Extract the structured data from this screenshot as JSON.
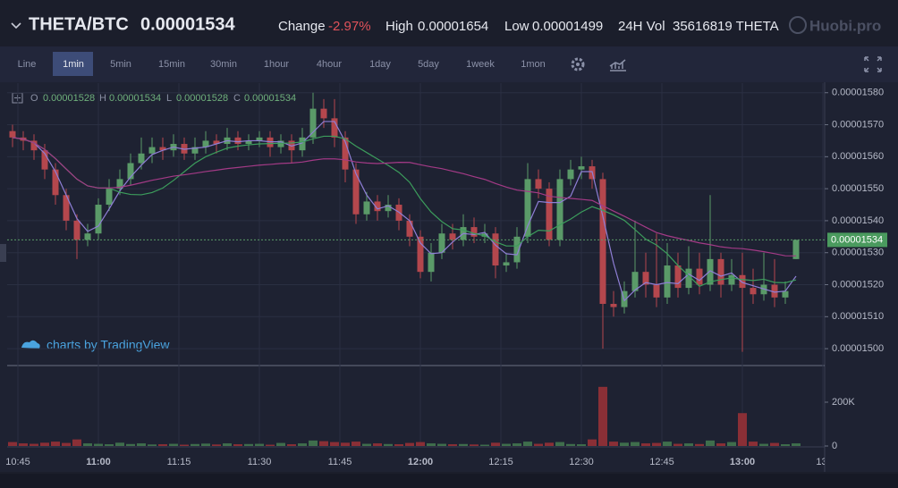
{
  "header": {
    "pair": "THETA/BTC",
    "change_label": "Change",
    "change": "-2.97%",
    "high_label": "High",
    "high": "0.00001654",
    "low_label": "Low",
    "low": "0.00001499",
    "vol_label": "24H Vol",
    "vol": "35616819 THETA",
    "logo": "Huobi.pro"
  },
  "toolbar": {
    "intervals": [
      "Line",
      "1min",
      "5min",
      "15min",
      "30min",
      "1hour",
      "4hour",
      "1day",
      "5day",
      "1week",
      "1mon"
    ],
    "active": "1min"
  },
  "chart_data": {
    "type": "candlestick",
    "legend": [
      {
        "label": "O",
        "value": "0.00001528"
      },
      {
        "label": "H",
        "value": "0.00001534"
      },
      {
        "label": "L",
        "value": "0.00001528"
      },
      {
        "label": "C",
        "value": "0.00001534"
      }
    ],
    "watermark": "charts by TradingView",
    "up_color": "#5a9a68",
    "down_color": "#b4474d",
    "ylim": [
      1.495e-05,
      1.583e-05
    ],
    "yticks": [
      {
        "value": 1.5e-05,
        "label": "0.00001500"
      },
      {
        "value": 1.51e-05,
        "label": "0.00001510"
      },
      {
        "value": 1.52e-05,
        "label": "0.00001520"
      },
      {
        "value": 1.53e-05,
        "label": "0.00001530"
      },
      {
        "value": 1.54e-05,
        "label": "0.00001540"
      },
      {
        "value": 1.55e-05,
        "label": "0.00001550"
      },
      {
        "value": 1.56e-05,
        "label": "0.00001560"
      },
      {
        "value": 1.57e-05,
        "label": "0.00001570"
      },
      {
        "value": 1.58e-05,
        "label": "0.00001580"
      }
    ],
    "last_price": {
      "value": 1.534e-05,
      "label": "0.00001534"
    },
    "xticks": [
      "10:45",
      "11:00",
      "11:15",
      "11:30",
      "11:45",
      "12:00",
      "12:15",
      "12:30",
      "12:45",
      "13:00",
      "13:"
    ],
    "bold_xticks": [
      "11:00",
      "12:00",
      "13:00"
    ],
    "grid": true,
    "candles": [
      [
        1.568e-05,
        1.57e-05,
        1.563e-05,
        1.566e-05
      ],
      [
        1.566e-05,
        1.568e-05,
        1.562e-05,
        1.565e-05
      ],
      [
        1.565e-05,
        1.567e-05,
        1.559e-05,
        1.562e-05
      ],
      [
        1.562e-05,
        1.564e-05,
        1.553e-05,
        1.556e-05
      ],
      [
        1.556e-05,
        1.558e-05,
        1.545e-05,
        1.548e-05
      ],
      [
        1.548e-05,
        1.55e-05,
        1.537e-05,
        1.54e-05
      ],
      [
        1.54e-05,
        1.542e-05,
        1.528e-05,
        1.534e-05
      ],
      [
        1.534e-05,
        1.539e-05,
        1.532e-05,
        1.536e-05
      ],
      [
        1.536e-05,
        1.547e-05,
        1.534e-05,
        1.545e-05
      ],
      [
        1.545e-05,
        1.553e-05,
        1.543e-05,
        1.55e-05
      ],
      [
        1.55e-05,
        1.556e-05,
        1.548e-05,
        1.553e-05
      ],
      [
        1.553e-05,
        1.561e-05,
        1.551e-05,
        1.558e-05
      ],
      [
        1.558e-05,
        1.566e-05,
        1.556e-05,
        1.561e-05
      ],
      [
        1.561e-05,
        1.566e-05,
        1.558e-05,
        1.563e-05
      ],
      [
        1.563e-05,
        1.566e-05,
        1.559e-05,
        1.562e-05
      ],
      [
        1.562e-05,
        1.567e-05,
        1.56e-05,
        1.564e-05
      ],
      [
        1.564e-05,
        1.566e-05,
        1.559e-05,
        1.561e-05
      ],
      [
        1.561e-05,
        1.566e-05,
        1.559e-05,
        1.563e-05
      ],
      [
        1.563e-05,
        1.568e-05,
        1.561e-05,
        1.565e-05
      ],
      [
        1.565e-05,
        1.567e-05,
        1.561e-05,
        1.564e-05
      ],
      [
        1.564e-05,
        1.569e-05,
        1.562e-05,
        1.566e-05
      ],
      [
        1.566e-05,
        1.568e-05,
        1.562e-05,
        1.564e-05
      ],
      [
        1.564e-05,
        1.567e-05,
        1.562e-05,
        1.565e-05
      ],
      [
        1.565e-05,
        1.568e-05,
        1.563e-05,
        1.566e-05
      ],
      [
        1.566e-05,
        1.568e-05,
        1.56e-05,
        1.563e-05
      ],
      [
        1.563e-05,
        1.567e-05,
        1.561e-05,
        1.565e-05
      ],
      [
        1.565e-05,
        1.567e-05,
        1.558e-05,
        1.562e-05
      ],
      [
        1.562e-05,
        1.569e-05,
        1.56e-05,
        1.566e-05
      ],
      [
        1.566e-05,
        1.58e-05,
        1.564e-05,
        1.575e-05
      ],
      [
        1.575e-05,
        1.578e-05,
        1.569e-05,
        1.572e-05
      ],
      [
        1.572e-05,
        1.578e-05,
        1.563e-05,
        1.566e-05
      ],
      [
        1.566e-05,
        1.568e-05,
        1.552e-05,
        1.556e-05
      ],
      [
        1.556e-05,
        1.558e-05,
        1.539e-05,
        1.542e-05
      ],
      [
        1.542e-05,
        1.549e-05,
        1.54e-05,
        1.546e-05
      ],
      [
        1.546e-05,
        1.548e-05,
        1.54e-05,
        1.543e-05
      ],
      [
        1.543e-05,
        1.548e-05,
        1.541e-05,
        1.545e-05
      ],
      [
        1.545e-05,
        1.547e-05,
        1.537e-05,
        1.54e-05
      ],
      [
        1.54e-05,
        1.542e-05,
        1.532e-05,
        1.535e-05
      ],
      [
        1.535e-05,
        1.537e-05,
        1.522e-05,
        1.524e-05
      ],
      [
        1.524e-05,
        1.533e-05,
        1.521e-05,
        1.53e-05
      ],
      [
        1.53e-05,
        1.539e-05,
        1.528e-05,
        1.536e-05
      ],
      [
        1.536e-05,
        1.539e-05,
        1.531e-05,
        1.534e-05
      ],
      [
        1.534e-05,
        1.542e-05,
        1.532e-05,
        1.538e-05
      ],
      [
        1.538e-05,
        1.541e-05,
        1.533e-05,
        1.535e-05
      ],
      [
        1.535e-05,
        1.539e-05,
        1.533e-05,
        1.536e-05
      ],
      [
        1.536e-05,
        1.538e-05,
        1.522e-05,
        1.526e-05
      ],
      [
        1.526e-05,
        1.53e-05,
        1.524e-05,
        1.527e-05
      ],
      [
        1.527e-05,
        1.538e-05,
        1.525e-05,
        1.535e-05
      ],
      [
        1.535e-05,
        1.558e-05,
        1.533e-05,
        1.553e-05
      ],
      [
        1.553e-05,
        1.556e-05,
        1.547e-05,
        1.55e-05
      ],
      [
        1.55e-05,
        1.552e-05,
        1.532e-05,
        1.534e-05
      ],
      [
        1.534e-05,
        1.556e-05,
        1.532e-05,
        1.553e-05
      ],
      [
        1.553e-05,
        1.559e-05,
        1.551e-05,
        1.556e-05
      ],
      [
        1.556e-05,
        1.56e-05,
        1.553e-05,
        1.557e-05
      ],
      [
        1.557e-05,
        1.559e-05,
        1.55e-05,
        1.553e-05
      ],
      [
        1.553e-05,
        1.555e-05,
        1.5e-05,
        1.514e-05
      ],
      [
        1.514e-05,
        1.518e-05,
        1.51e-05,
        1.513e-05
      ],
      [
        1.513e-05,
        1.521e-05,
        1.511e-05,
        1.518e-05
      ],
      [
        1.518e-05,
        1.54e-05,
        1.516e-05,
        1.524e-05
      ],
      [
        1.524e-05,
        1.53e-05,
        1.516e-05,
        1.52e-05
      ],
      [
        1.52e-05,
        1.536e-05,
        1.513e-05,
        1.516e-05
      ],
      [
        1.516e-05,
        1.533e-05,
        1.514e-05,
        1.526e-05
      ],
      [
        1.526e-05,
        1.53e-05,
        1.516e-05,
        1.519e-05
      ],
      [
        1.519e-05,
        1.532e-05,
        1.517e-05,
        1.525e-05
      ],
      [
        1.525e-05,
        1.53e-05,
        1.517e-05,
        1.52e-05
      ],
      [
        1.52e-05,
        1.548e-05,
        1.518e-05,
        1.528e-05
      ],
      [
        1.528e-05,
        1.53e-05,
        1.516e-05,
        1.52e-05
      ],
      [
        1.52e-05,
        1.528e-05,
        1.518e-05,
        1.523e-05
      ],
      [
        1.523e-05,
        1.53e-05,
        1.499e-05,
        1.519e-05
      ],
      [
        1.519e-05,
        1.525e-05,
        1.514e-05,
        1.517e-05
      ],
      [
        1.517e-05,
        1.53e-05,
        1.515e-05,
        1.52e-05
      ],
      [
        1.52e-05,
        1.528e-05,
        1.513e-05,
        1.516e-05
      ],
      [
        1.516e-05,
        1.521e-05,
        1.514e-05,
        1.518e-05
      ],
      [
        1.528e-05,
        1.534e-05,
        1.528e-05,
        1.534e-05
      ]
    ],
    "vlim": [
      0,
      355000
    ],
    "vticks": [
      0,
      {
        "value": 200000,
        "label": "200K"
      }
    ],
    "volumes": [
      18000,
      12000,
      10000,
      15000,
      20000,
      14000,
      30000,
      12000,
      10000,
      8000,
      15000,
      9000,
      12000,
      7000,
      8000,
      10000,
      6000,
      9000,
      11000,
      7000,
      12000,
      8000,
      9000,
      10000,
      6000,
      14000,
      8000,
      12000,
      25000,
      22000,
      18000,
      15000,
      20000,
      10000,
      12000,
      9000,
      8000,
      14000,
      18000,
      12000,
      10000,
      8000,
      9000,
      7000,
      6000,
      15000,
      10000,
      12000,
      20000,
      10000,
      15000,
      18000,
      9000,
      8000,
      30000,
      270000,
      20000,
      15000,
      18000,
      12000,
      14000,
      20000,
      10000,
      12000,
      9000,
      25000,
      12000,
      18000,
      150000,
      20000,
      10000,
      14000,
      8000,
      12000
    ]
  }
}
